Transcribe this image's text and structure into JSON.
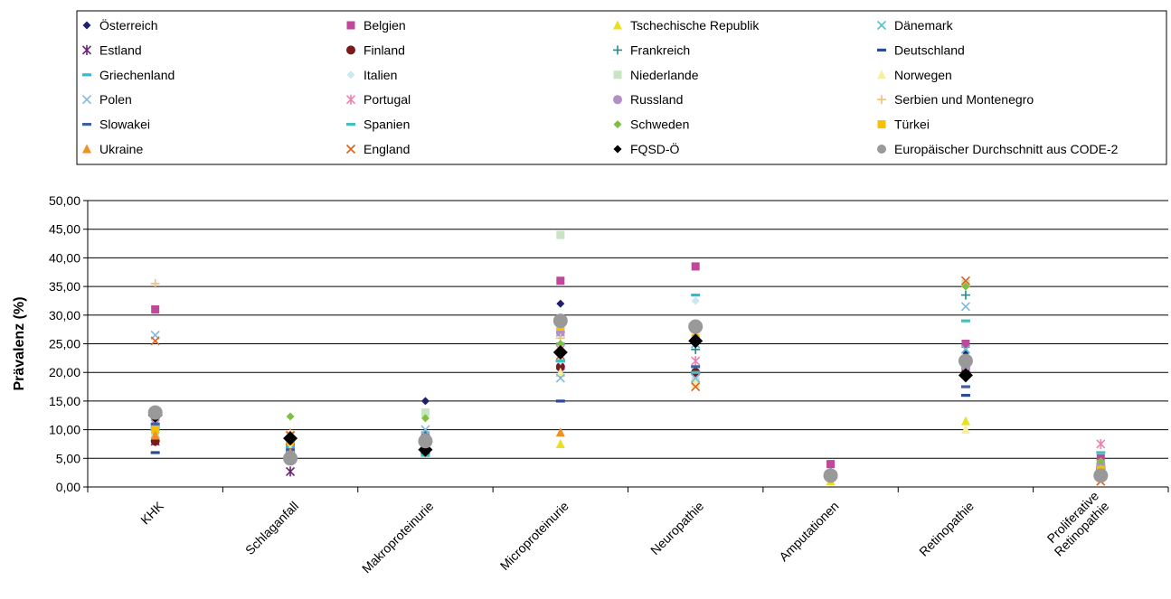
{
  "chart_data": {
    "type": "scatter",
    "title": "",
    "xlabel": "",
    "ylabel": "Prävalenz (%)",
    "ylim": [
      0,
      50
    ],
    "ytick_step": 5,
    "ytick_format": "comma-2-decimals",
    "grid": "horizontal",
    "legend_position": "top",
    "categories": [
      "KHK",
      "Schlaganfall",
      "Makroproteinurie",
      "Microproteinurie",
      "Neuropathie",
      "Amputationen",
      "Retinopathie",
      "Proliferative Retinopathie"
    ],
    "category_label_lines": [
      [
        "KHK"
      ],
      [
        "Schlaganfall"
      ],
      [
        "Makroproteinurie"
      ],
      [
        "Microproteinurie"
      ],
      [
        "Neuropathie"
      ],
      [
        "Amputationen"
      ],
      [
        "Retinopathie"
      ],
      [
        "Proliferative",
        "Retinopathie"
      ]
    ],
    "series": [
      {
        "name": "Österreich",
        "marker": "diamond",
        "color": "#1f1f6e",
        "values": [
          12.0,
          6.5,
          15.0,
          32.0,
          26.0,
          2.5,
          23.5,
          2.0
        ]
      },
      {
        "name": "Belgien",
        "marker": "square",
        "color": "#c0479a",
        "values": [
          31.0,
          8.0,
          9.0,
          36.0,
          38.5,
          4.0,
          25.0,
          5.0
        ]
      },
      {
        "name": "Tschechische Republik",
        "marker": "triangle",
        "color": "#e8e020",
        "values": [
          9.0,
          5.0,
          7.0,
          7.5,
          18.0,
          1.0,
          11.5,
          3.0
        ]
      },
      {
        "name": "Dänemark",
        "marker": "x",
        "color": "#56c2cc",
        "values": [
          11.0,
          6.0,
          9.0,
          27.0,
          25.0,
          2.0,
          24.0,
          3.5
        ]
      },
      {
        "name": "Estland",
        "marker": "asterisk",
        "color": "#6a2478",
        "values": [
          8.0,
          2.7,
          8.0,
          20.0,
          19.0,
          2.0,
          20.0,
          2.0
        ]
      },
      {
        "name": "Finland",
        "marker": "circle",
        "color": "#7a1a1a",
        "values": [
          8.0,
          7.5,
          8.5,
          21.0,
          20.0,
          2.0,
          20.0,
          2.0
        ]
      },
      {
        "name": "Frankreich",
        "marker": "plus",
        "color": "#2a8a8a",
        "values": [
          10.0,
          7.0,
          9.0,
          22.0,
          24.0,
          2.5,
          33.5,
          3.0
        ]
      },
      {
        "name": "Deutschland",
        "marker": "dash",
        "color": "#2a4a9a",
        "values": [
          6.0,
          6.0,
          6.0,
          15.0,
          20.0,
          2.0,
          16.0,
          3.5
        ]
      },
      {
        "name": "Griechenland",
        "marker": "dash",
        "color": "#30b8e0",
        "values": [
          10.5,
          7.0,
          8.0,
          25.0,
          33.5,
          2.0,
          21.0,
          3.0
        ]
      },
      {
        "name": "Italien",
        "marker": "diamond",
        "color": "#c8e8f4",
        "values": [
          10.0,
          7.5,
          8.5,
          22.0,
          32.5,
          2.0,
          22.5,
          3.0
        ]
      },
      {
        "name": "Niederlande",
        "marker": "square",
        "color": "#c8e4c0",
        "values": [
          9.0,
          6.0,
          13.0,
          44.0,
          18.5,
          2.0,
          35.5,
          4.0
        ]
      },
      {
        "name": "Norwegen",
        "marker": "triangle",
        "color": "#f4f0a0",
        "values": [
          10.0,
          6.5,
          7.5,
          20.0,
          18.0,
          2.0,
          10.0,
          3.0
        ]
      },
      {
        "name": "Polen",
        "marker": "x",
        "color": "#80b8e0",
        "values": [
          26.5,
          9.0,
          10.0,
          19.0,
          19.0,
          2.0,
          31.5,
          4.0
        ]
      },
      {
        "name": "Portugal",
        "marker": "asterisk",
        "color": "#f080b0",
        "values": [
          11.0,
          6.0,
          8.0,
          24.0,
          22.0,
          2.0,
          22.0,
          7.5
        ]
      },
      {
        "name": "Russland",
        "marker": "circle",
        "color": "#b090c8",
        "values": [
          12.0,
          5.5,
          7.5,
          27.0,
          26.0,
          2.0,
          21.0,
          4.0
        ]
      },
      {
        "name": "Serbien und Montenegro",
        "marker": "plus",
        "color": "#f0c080",
        "values": [
          35.5,
          9.5,
          8.5,
          26.0,
          27.0,
          2.0,
          22.0,
          3.0
        ]
      },
      {
        "name": "Slowakei",
        "marker": "dash",
        "color": "#4060a0",
        "values": [
          11.0,
          6.5,
          7.0,
          22.0,
          21.0,
          2.0,
          17.5,
          3.0
        ]
      },
      {
        "name": "Spanien",
        "marker": "dash",
        "color": "#40c0c0",
        "values": [
          10.0,
          5.0,
          5.5,
          22.0,
          20.0,
          1.5,
          29.0,
          6.0
        ]
      },
      {
        "name": "Schweden",
        "marker": "diamond",
        "color": "#80c040",
        "values": [
          9.5,
          12.3,
          12.0,
          25.0,
          25.0,
          2.0,
          35.0,
          4.5
        ]
      },
      {
        "name": "Türkei",
        "marker": "square",
        "color": "#f8c000",
        "values": [
          10.0,
          8.0,
          8.0,
          28.0,
          26.0,
          2.0,
          22.0,
          3.0
        ]
      },
      {
        "name": "Ukraine",
        "marker": "triangle",
        "color": "#f09020",
        "values": [
          9.0,
          6.0,
          7.0,
          9.5,
          26.5,
          2.0,
          20.0,
          2.0
        ]
      },
      {
        "name": "England",
        "marker": "x",
        "color": "#e06020",
        "values": [
          25.5,
          9.0,
          7.5,
          23.0,
          17.5,
          2.0,
          36.0,
          1.0
        ]
      },
      {
        "name": "FQSD-Ö",
        "marker": "diamond-big",
        "color": "#000000",
        "values": [
          12.5,
          8.5,
          6.5,
          23.5,
          25.5,
          2.0,
          19.5,
          2.0
        ]
      },
      {
        "name": "Europäischer Durchschnitt aus CODE-2",
        "marker": "circle-big",
        "color": "#999999",
        "values": [
          13.0,
          5.0,
          8.0,
          29.0,
          28.0,
          2.0,
          22.0,
          2.0
        ]
      }
    ]
  }
}
